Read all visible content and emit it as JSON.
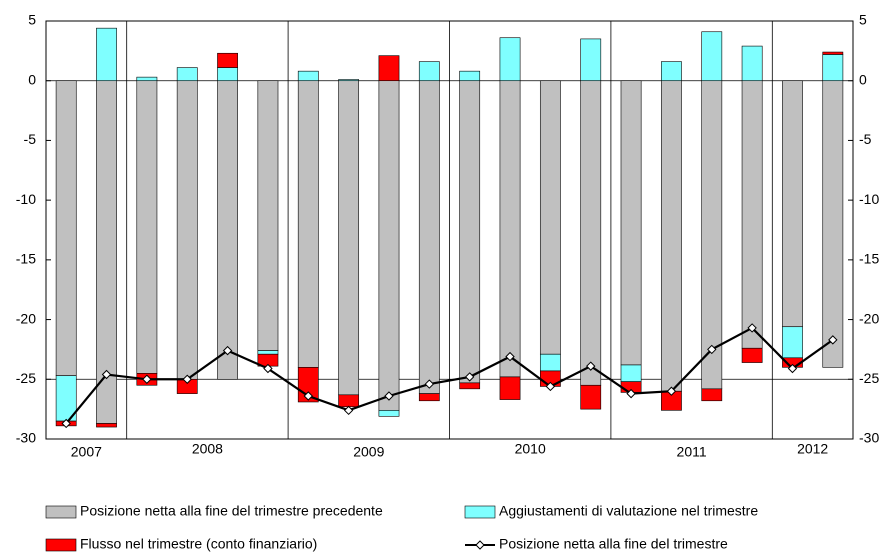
{
  "chart_data": {
    "type": "stacked-bar-line",
    "year_groups": [
      {
        "label": "2007",
        "size": 2
      },
      {
        "label": "2008",
        "size": 4
      },
      {
        "label": "2009",
        "size": 4
      },
      {
        "label": "2010",
        "size": 4
      },
      {
        "label": "2011",
        "size": 4
      },
      {
        "label": "2012",
        "size": 2
      }
    ],
    "series": [
      {
        "name": "Posizione netta alla fine del trimestre precedente",
        "color": "#c0c0c0",
        "kind": "bar",
        "values": [
          -24.7,
          -28.7,
          -24.5,
          -25.0,
          -25.0,
          -22.6,
          -24.0,
          -26.3,
          -27.6,
          -26.2,
          -25.3,
          -24.8,
          -22.9,
          -25.5,
          -23.8,
          -26.0,
          -25.8,
          -22.4,
          -20.6,
          -24.0
        ]
      },
      {
        "name": "Aggiustamenti di valutazione nel trimestre",
        "color": "#7fffff",
        "kind": "bar",
        "values": [
          -3.8,
          4.4,
          0.3,
          1.1,
          1.1,
          -0.3,
          0.8,
          0.1,
          -0.5,
          1.6,
          0.8,
          3.6,
          -1.4,
          3.5,
          -1.4,
          1.6,
          4.1,
          2.9,
          -2.6,
          2.2
        ]
      },
      {
        "name": "Flusso nel trimestre (conto finanziario)",
        "color": "#ff0000",
        "kind": "bar",
        "values": [
          -0.4,
          -0.3,
          -1.0,
          -1.2,
          1.2,
          -1.0,
          -2.9,
          -1.0,
          2.1,
          -0.6,
          -0.5,
          -1.9,
          -1.3,
          -2.0,
          -0.9,
          -1.6,
          -1.0,
          -1.2,
          -0.8,
          0.2
        ]
      },
      {
        "name": "Posizione netta alla fine del trimestre",
        "color": "#000000",
        "kind": "line",
        "values": [
          -28.7,
          -24.6,
          -25.0,
          -25.0,
          -22.6,
          -24.1,
          -26.4,
          -27.6,
          -26.4,
          -25.4,
          -24.8,
          -23.1,
          -25.6,
          -23.9,
          -26.2,
          -26.0,
          -22.5,
          -20.7,
          -24.1,
          -21.7
        ]
      }
    ],
    "ylim": [
      -30,
      5
    ],
    "yticks": [
      -30,
      -25,
      -20,
      -15,
      -10,
      -5,
      0,
      5
    ],
    "y2lim": [
      -30,
      5
    ],
    "y2ticks": [
      -30,
      -25,
      -20,
      -15,
      -10,
      -5,
      0,
      5
    ],
    "hlines": [
      0,
      -25
    ]
  }
}
